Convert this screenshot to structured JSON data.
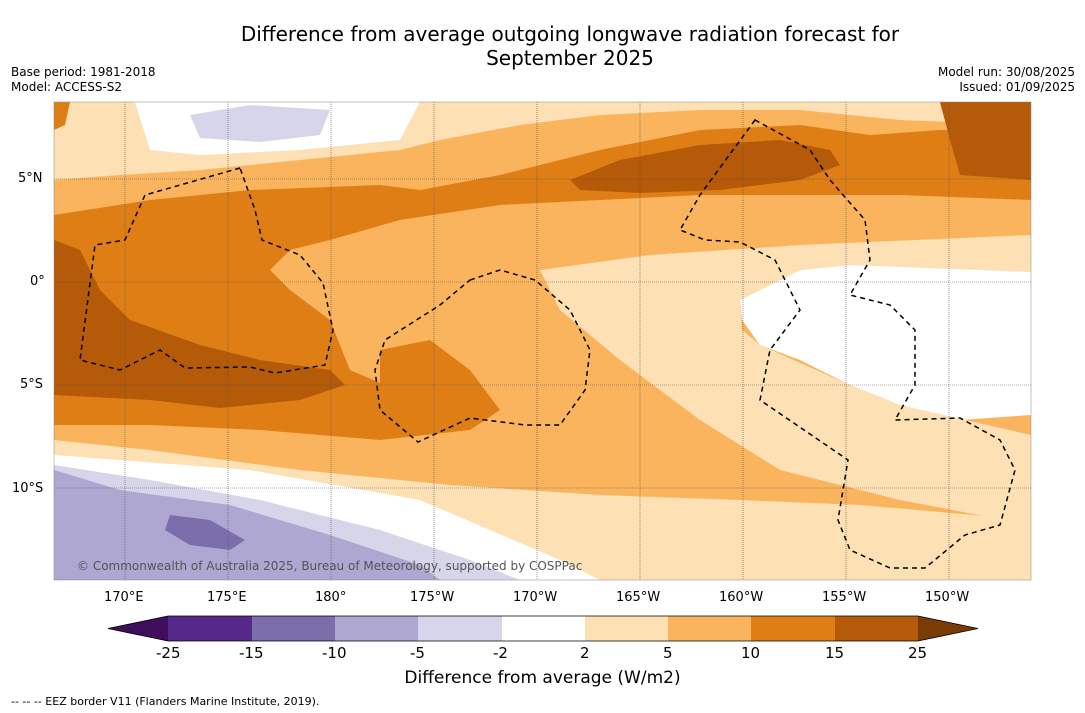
{
  "title_line1": "Difference from average outgoing longwave radiation forecast for",
  "title_line2": "September 2025",
  "base_period": "Base period: 1981-2018",
  "model": "Model: ACCESS-S2",
  "model_run": "Model run: 30/08/2025",
  "issued": "Issued: 01/09/2025",
  "copyright": "© Commonwealth of Australia 2025, Bureau of Meteorology, supported by COSPPac",
  "lat_ticks": [
    "5°N",
    "0°",
    "5°S",
    "10°S"
  ],
  "lon_ticks": [
    "170°E",
    "175°E",
    "180°",
    "175°W",
    "170°W",
    "165°W",
    "160°W",
    "155°W",
    "150°W"
  ],
  "colorbar": {
    "label": "Difference from average (W/m2)",
    "ticks": [
      "-25",
      "-15",
      "-10",
      "-5",
      "-2",
      "2",
      "5",
      "10",
      "15",
      "25"
    ],
    "colors": [
      "#3f0f5e",
      "#56288a",
      "#7b6eab",
      "#aea7d1",
      "#d6d5ea",
      "#ffffff",
      "#fde0b4",
      "#fbb45e",
      "#e07e16",
      "#b45a08",
      "#7a3b05"
    ]
  },
  "footnote": "--  --  -- EEZ border V11 (Flanders Marine Institute, 2019)."
}
